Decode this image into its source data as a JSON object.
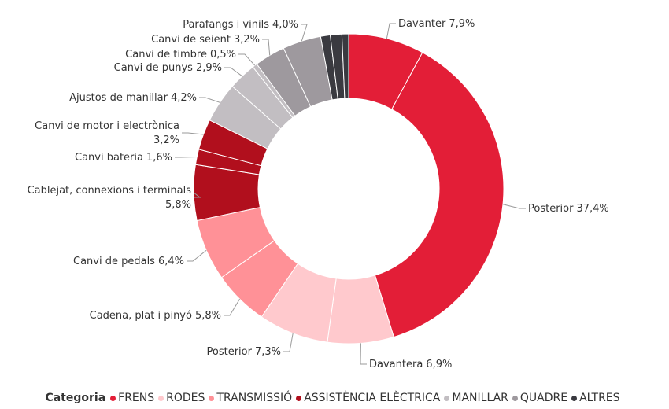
{
  "chart_data": {
    "type": "donut",
    "categories": [
      "Davanter",
      "Posterior",
      "Davantera",
      "Posterior",
      "Cadena, plat i pinyó",
      "Canvi de pedals",
      "Cablejat, connexions i terminals",
      "Canvi bateria",
      "Canvi de motor i electrònica",
      "Ajustos de manillar",
      "Canvi de punys",
      "Canvi de timbre",
      "Canvi de seient",
      "Parafangs i vinils",
      null,
      null,
      null
    ],
    "values": [
      7.9,
      37.4,
      6.9,
      7.3,
      5.8,
      6.4,
      5.8,
      1.6,
      3.2,
      4.2,
      2.9,
      0.5,
      3.2,
      4.0,
      1.0,
      1.2,
      0.7
    ],
    "value_labels": [
      "7,9%",
      "37,4%",
      "6,9%",
      "7,3%",
      "5,8%",
      "6,4%",
      "5,8%",
      "1,6%",
      "3,2%",
      "4,2%",
      "2,9%",
      "0,5%",
      "3,2%",
      "4,0%",
      null,
      null,
      null
    ],
    "slice_colors": [
      "#e31e37",
      "#e31e37",
      "#ffc9cd",
      "#ffc9cd",
      "#ff9197",
      "#ff9197",
      "#b10f1d",
      "#b10f1d",
      "#b10f1d",
      "#c2bec2",
      "#c2bec2",
      "#c2bec2",
      "#9e999e",
      "#9e999e",
      "#3a3a40",
      "#3a3a40",
      "#3a3a40"
    ],
    "legend_title": "Categoria",
    "legend": [
      {
        "name": "FRENS",
        "color": "#e31e37"
      },
      {
        "name": "RODES",
        "color": "#ffc9cd"
      },
      {
        "name": "TRANSMISSIÓ",
        "color": "#ff9197"
      },
      {
        "name": "ASSISTÈNCIA ELÈCTRICA",
        "color": "#b10f1d"
      },
      {
        "name": "MANILLAR",
        "color": "#c2bec2"
      },
      {
        "name": "QUADRE",
        "color": "#9e999e"
      },
      {
        "name": "ALTRES",
        "color": "#3a3a40"
      }
    ]
  }
}
